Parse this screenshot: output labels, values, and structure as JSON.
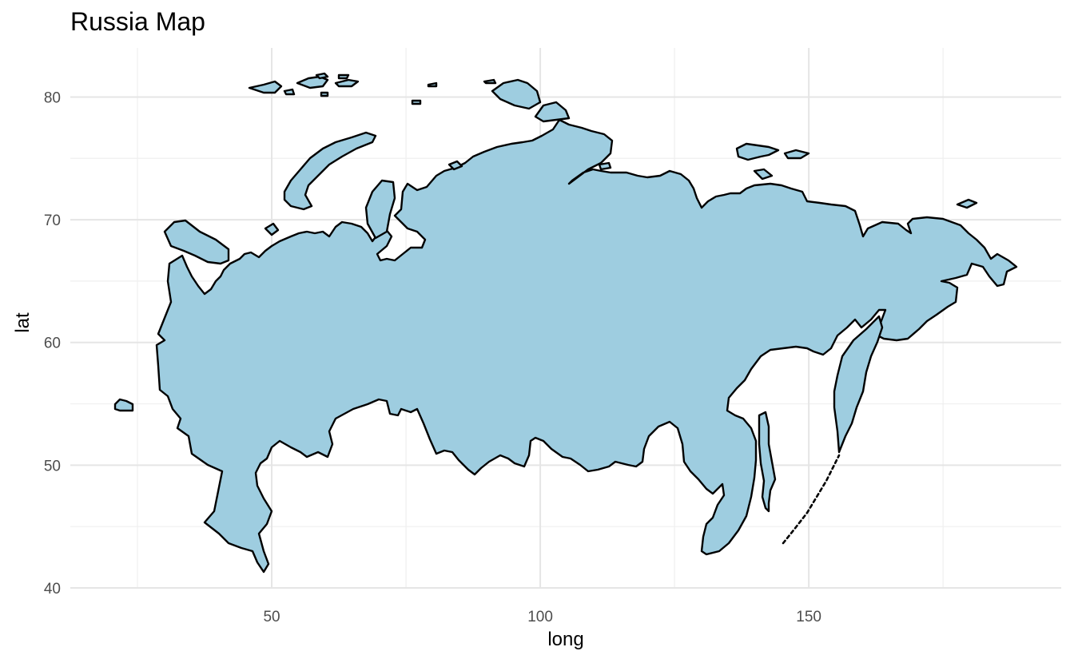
{
  "chart_data": {
    "type": "map",
    "title": "Russia Map",
    "xlabel": "long",
    "ylabel": "lat",
    "xlim": [
      12.5,
      197
    ],
    "ylim": [
      40,
      84
    ],
    "x_ticks": [
      50,
      100,
      150
    ],
    "y_ticks": [
      40,
      50,
      60,
      70,
      80
    ],
    "x_tick_labels": [
      "50",
      "100",
      "150"
    ],
    "y_tick_labels": [
      "40",
      "50",
      "60",
      "70",
      "80"
    ],
    "grid": true,
    "region": "Russia",
    "colors": {
      "fill": "#9ecde0",
      "outline": "#000000",
      "grid": "#e5e5e5",
      "background": "#ffffff"
    }
  }
}
